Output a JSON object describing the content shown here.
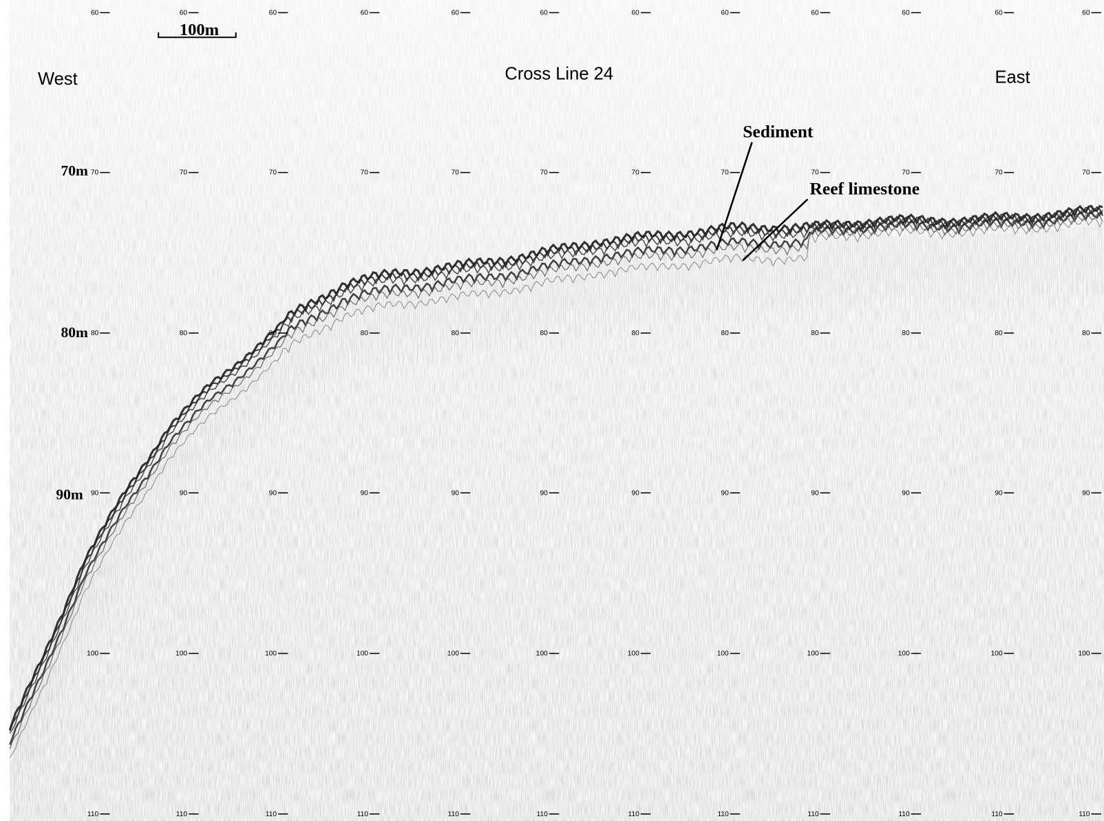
{
  "header": {
    "title": "Cross Line 24",
    "west": "West",
    "east": "East"
  },
  "scale_bar": "100m",
  "depth_labels": [
    "70m",
    "80m",
    "90m"
  ],
  "annotations": [
    "Sediment",
    "Reef limestone"
  ],
  "tick_columns": [
    [
      60,
      70,
      80,
      90,
      100,
      110
    ],
    [
      60,
      70,
      80,
      90,
      100,
      110
    ],
    [
      60,
      70,
      80,
      90,
      100,
      110
    ],
    [
      60,
      70,
      80,
      90,
      100,
      110
    ],
    [
      60,
      70,
      80,
      90,
      100,
      110
    ],
    [
      60,
      70,
      80,
      90,
      100,
      110
    ],
    [
      60,
      70,
      80,
      90,
      100,
      110
    ],
    [
      60,
      70,
      80,
      90,
      100,
      110
    ],
    [
      60,
      70,
      80,
      90,
      100,
      110
    ],
    [
      60,
      70,
      80,
      90,
      100,
      110
    ],
    [
      60,
      70,
      80,
      90,
      100,
      110
    ],
    [
      60,
      70,
      80,
      90,
      100,
      110
    ]
  ]
}
